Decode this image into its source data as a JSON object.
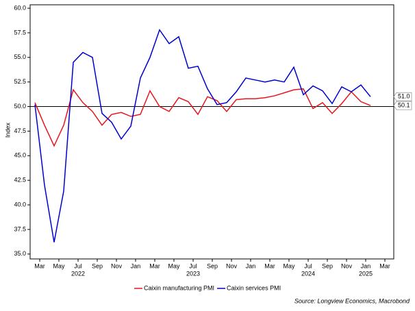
{
  "chart_data": {
    "type": "line",
    "y_label": "Index",
    "x": [
      "2022-02",
      "2022-03",
      "2022-04",
      "2022-05",
      "2022-06",
      "2022-07",
      "2022-08",
      "2022-09",
      "2022-10",
      "2022-11",
      "2022-12",
      "2023-01",
      "2023-02",
      "2023-03",
      "2023-04",
      "2023-05",
      "2023-06",
      "2023-07",
      "2023-08",
      "2023-09",
      "2023-10",
      "2023-11",
      "2023-12",
      "2024-01",
      "2024-02",
      "2024-03",
      "2024-04",
      "2024-05",
      "2024-06",
      "2024-07",
      "2024-08",
      "2024-09",
      "2024-10",
      "2024-11",
      "2024-12",
      "2025-01"
    ],
    "series": [
      {
        "name": "Caixin manufacturing PMI",
        "color": "#e8141b",
        "last_value_label": "50.1",
        "values": [
          50.4,
          48.1,
          46.0,
          48.1,
          51.7,
          50.4,
          49.5,
          48.1,
          49.2,
          49.4,
          49.0,
          49.2,
          51.6,
          50.0,
          49.5,
          50.9,
          50.5,
          49.2,
          51.0,
          50.6,
          49.5,
          50.7,
          50.8,
          50.8,
          50.9,
          51.1,
          51.4,
          51.7,
          51.8,
          49.8,
          50.4,
          49.3,
          50.3,
          51.5,
          50.5,
          50.1
        ]
      },
      {
        "name": "Caixin services PMI",
        "color": "#0000cc",
        "last_value_label": "51.0",
        "values": [
          50.2,
          42.0,
          36.2,
          41.4,
          54.5,
          55.5,
          55.0,
          49.3,
          48.4,
          46.7,
          48.0,
          52.9,
          55.0,
          57.8,
          56.4,
          57.1,
          53.9,
          54.1,
          51.8,
          50.2,
          50.4,
          51.5,
          52.9,
          52.7,
          52.5,
          52.7,
          52.5,
          54.0,
          51.2,
          52.1,
          51.6,
          50.3,
          52.0,
          51.5,
          52.2,
          51.0
        ]
      }
    ],
    "hline": 50,
    "ylim": [
      34.5,
      60.35
    ],
    "yticks": [
      {
        "value": 35,
        "label": "35.0"
      },
      {
        "value": 37.5,
        "label": "37.5"
      },
      {
        "value": 40,
        "label": "40.0"
      },
      {
        "value": 42.5,
        "label": "42.5"
      },
      {
        "value": 45,
        "label": "45.0"
      },
      {
        "value": 47.5,
        "label": "47.5"
      },
      {
        "value": 50,
        "label": "50.0"
      },
      {
        "value": 52.5,
        "label": "52.5"
      },
      {
        "value": 55,
        "label": "55.0"
      },
      {
        "value": 57.5,
        "label": "57.5"
      },
      {
        "value": 60,
        "label": "60.0"
      }
    ],
    "xticks": [
      {
        "value": "2022-03",
        "label": "Mar"
      },
      {
        "value": "2022-05",
        "label": "May"
      },
      {
        "value": "2022-07",
        "label": "Jul"
      },
      {
        "value": "2022-09",
        "label": "Sep"
      },
      {
        "value": "2022-11",
        "label": "Nov"
      },
      {
        "value": "2023-01",
        "label": "Jan"
      },
      {
        "value": "2023-03",
        "label": "Mar"
      },
      {
        "value": "2023-05",
        "label": "May"
      },
      {
        "value": "2023-07",
        "label": "Jul"
      },
      {
        "value": "2023-09",
        "label": "Sep"
      },
      {
        "value": "2023-11",
        "label": "Nov"
      },
      {
        "value": "2024-01",
        "label": "Jan"
      },
      {
        "value": "2024-03",
        "label": "Mar"
      },
      {
        "value": "2024-05",
        "label": "May"
      },
      {
        "value": "2024-07",
        "label": "Jul"
      },
      {
        "value": "2024-09",
        "label": "Sep"
      },
      {
        "value": "2024-11",
        "label": "Nov"
      },
      {
        "value": "2025-01",
        "label": "Jan"
      },
      {
        "value": "2025-03",
        "label": "Mar"
      }
    ],
    "xtick_years": [
      {
        "value": "2022-07",
        "label": "2022"
      },
      {
        "value": "2023-07",
        "label": "2023"
      },
      {
        "value": "2024-07",
        "label": "2024"
      },
      {
        "value": "2025-01",
        "label": "2025"
      }
    ],
    "source": "Source: Longview Economics, Macrobond",
    "legend": "bottom"
  }
}
